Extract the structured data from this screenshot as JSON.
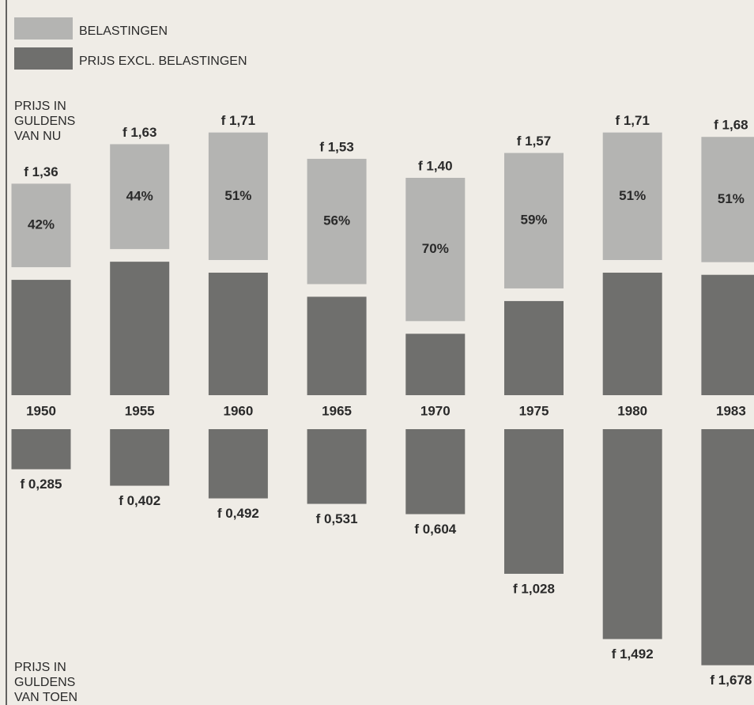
{
  "chart_data": {
    "type": "bar",
    "legend": [
      {
        "name": "BELASTINGEN",
        "color": "#b4b4b2"
      },
      {
        "name": "PRIJS EXCL. BELASTINGEN",
        "color": "#6f6f6d"
      }
    ],
    "top_axis_label": [
      "PRIJS IN",
      "GULDENS",
      "VAN NU"
    ],
    "bottom_axis_label": [
      "PRIJS IN",
      "GULDENS",
      "VAN TOEN"
    ],
    "categories": [
      "1950",
      "1955",
      "1960",
      "1965",
      "1970",
      "1975",
      "1980",
      "1983"
    ],
    "total_now": [
      1.36,
      1.63,
      1.71,
      1.53,
      1.4,
      1.57,
      1.71,
      1.68
    ],
    "total_now_labels": [
      "f 1,36",
      "f 1,63",
      "f 1,71",
      "f 1,53",
      "f 1,40",
      "f 1,57",
      "f 1,71",
      "f 1,68"
    ],
    "tax_share": [
      42,
      44,
      51,
      56,
      70,
      59,
      51,
      51
    ],
    "tax_share_labels": [
      "42%",
      "44%",
      "51%",
      "56%",
      "70%",
      "59%",
      "51%",
      "51%"
    ],
    "price_then": [
      0.285,
      0.402,
      0.492,
      0.531,
      0.604,
      1.028,
      1.492,
      1.678
    ],
    "price_then_labels": [
      "f 0,285",
      "f 0,402",
      "f 0,492",
      "f 0,531",
      "f 0,604",
      "f 1,028",
      "f 1,492",
      "f 1,678"
    ]
  }
}
